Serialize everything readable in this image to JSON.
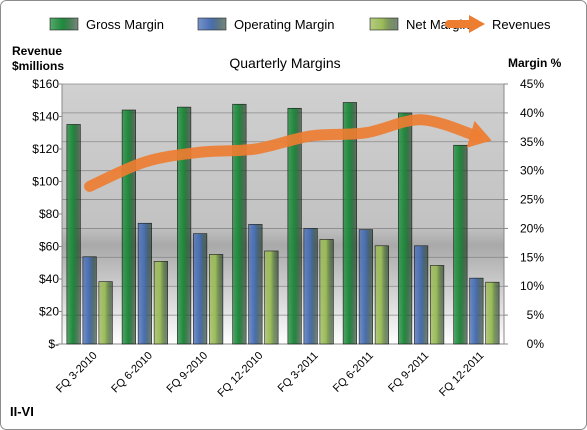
{
  "company": "II-VI",
  "chart_data": {
    "type": "bar",
    "title": "Quarterly Margins",
    "categories": [
      "FQ 3-2010",
      "FQ 6-2010",
      "FQ 9-2010",
      "FQ 12-2010",
      "FQ 3-2011",
      "FQ 6-2011",
      "FQ 9-2011",
      "FQ 12-2011"
    ],
    "series": [
      {
        "name": "Gross Margin",
        "axis": "right",
        "color": "#1f8a3c",
        "values": [
          38.0,
          40.5,
          41.0,
          41.5,
          40.8,
          41.8,
          40.0,
          34.4
        ]
      },
      {
        "name": "Operating Margin",
        "axis": "right",
        "color": "#4a6fb4",
        "values": [
          15.1,
          20.9,
          19.1,
          20.7,
          20.0,
          19.8,
          17.0,
          11.4
        ]
      },
      {
        "name": "Net Margin",
        "axis": "right",
        "color": "#9bbb59",
        "values": [
          10.8,
          14.3,
          15.5,
          16.1,
          18.1,
          17.0,
          13.6,
          10.7
        ]
      }
    ],
    "revenues": {
      "name": "Revenues",
      "axis": "left",
      "color": "#ed7d31",
      "values": [
        97,
        112,
        118,
        120,
        128,
        130,
        138,
        128
      ]
    },
    "left_axis": {
      "label": "Revenue\n$millions",
      "min": 0,
      "max": 160,
      "step": 20,
      "ticks": [
        "$-",
        "$20",
        "$40",
        "$60",
        "$80",
        "$100",
        "$120",
        "$140",
        "$160"
      ]
    },
    "right_axis": {
      "label": "Margin %",
      "min": 0,
      "max": 45,
      "step": 5,
      "ticks": [
        "0%",
        "5%",
        "10%",
        "15%",
        "20%",
        "25%",
        "30%",
        "35%",
        "40%",
        "45%"
      ]
    },
    "legend": {
      "position": "top",
      "entries": [
        "Gross Margin",
        "Operating Margin",
        "Net Margin",
        "Revenues"
      ]
    },
    "grid": true
  }
}
